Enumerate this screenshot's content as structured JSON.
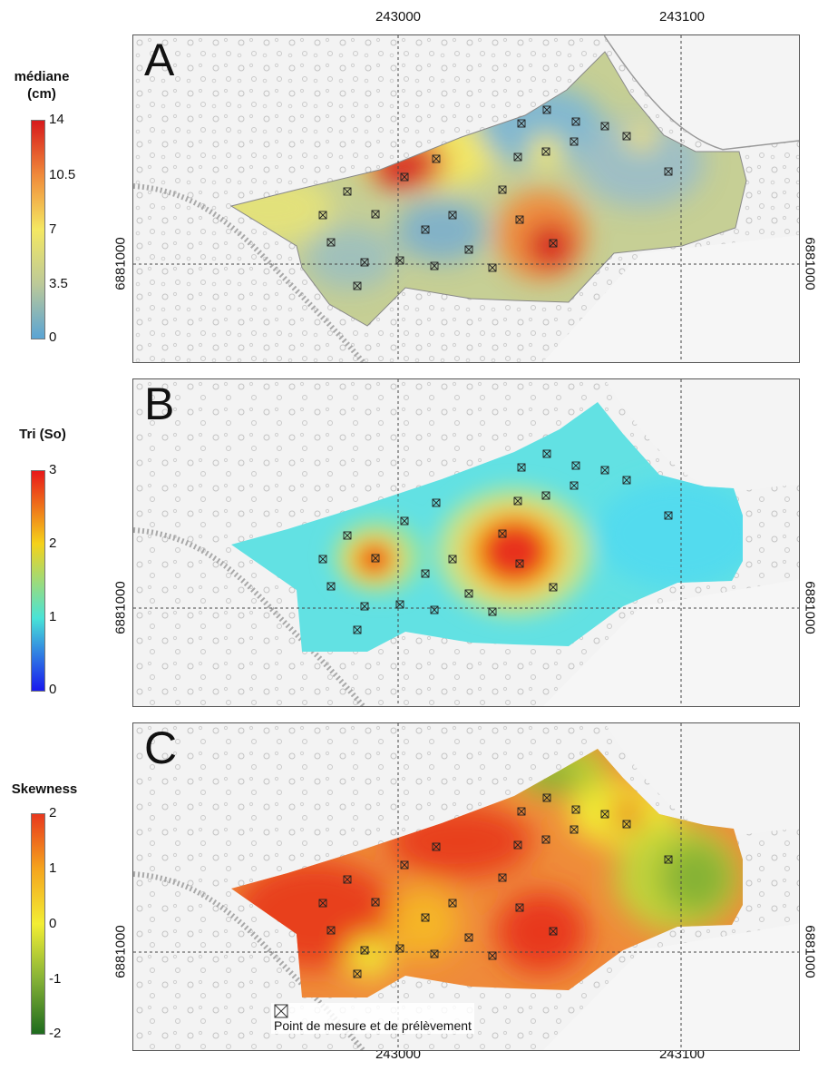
{
  "axes": {
    "easting_ticks": [
      "243000",
      "243100"
    ],
    "northing_tick": "6881000"
  },
  "panels": [
    {
      "letter": "A",
      "legend_title_line1": "médiane",
      "legend_title_line2": "(cm)",
      "scale_labels": [
        "14",
        "10.5",
        "7",
        "3.5",
        "0"
      ],
      "colors": {
        "high": "#d7191c",
        "mid_high": "#f08a3a",
        "mid": "#f4e862",
        "mid_low": "#bcc998",
        "low": "#5aa4d4"
      }
    },
    {
      "letter": "B",
      "legend_title_line1": "Tri (So)",
      "legend_title_line2": "",
      "scale_labels": [
        "3",
        "2",
        "1",
        "0"
      ],
      "colors": {
        "high": "#e8181a",
        "mid_high": "#f5d21a",
        "mid": "#48e3d7",
        "low": "#1818ee"
      }
    },
    {
      "letter": "C",
      "legend_title_line1": "Skewness",
      "legend_title_line2": "",
      "scale_labels": [
        "2",
        "1",
        "0",
        "-1",
        "-2"
      ],
      "colors": {
        "high": "#e8381e",
        "mid_high": "#f5a51e",
        "mid": "#f2ee34",
        "mid_low": "#86b236",
        "low": "#1e6b1e"
      }
    }
  ],
  "legend_note": "Point de mesure et de prélèvement",
  "icons": {
    "sample_point": "crossed-square-icon"
  }
}
